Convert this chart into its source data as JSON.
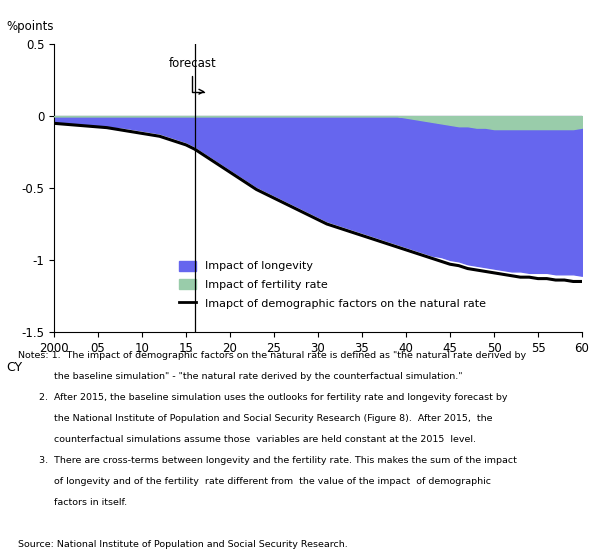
{
  "years": [
    2000,
    2001,
    2002,
    2003,
    2004,
    2005,
    2006,
    2007,
    2008,
    2009,
    2010,
    2011,
    2012,
    2013,
    2014,
    2015,
    2016,
    2017,
    2018,
    2019,
    2020,
    2021,
    2022,
    2023,
    2024,
    2025,
    2026,
    2027,
    2028,
    2029,
    2030,
    2031,
    2032,
    2033,
    2034,
    2035,
    2036,
    2037,
    2038,
    2039,
    2040,
    2041,
    2042,
    2043,
    2044,
    2045,
    2046,
    2047,
    2048,
    2049,
    2050,
    2051,
    2052,
    2053,
    2054,
    2055,
    2056,
    2057,
    2058,
    2059,
    2060
  ],
  "total_impact": [
    -0.05,
    -0.055,
    -0.06,
    -0.065,
    -0.07,
    -0.075,
    -0.08,
    -0.09,
    -0.1,
    -0.11,
    -0.12,
    -0.13,
    -0.14,
    -0.16,
    -0.18,
    -0.2,
    -0.23,
    -0.27,
    -0.31,
    -0.35,
    -0.39,
    -0.43,
    -0.47,
    -0.51,
    -0.54,
    -0.57,
    -0.6,
    -0.63,
    -0.66,
    -0.69,
    -0.72,
    -0.75,
    -0.77,
    -0.79,
    -0.81,
    -0.83,
    -0.85,
    -0.87,
    -0.89,
    -0.91,
    -0.93,
    -0.95,
    -0.97,
    -0.99,
    -1.01,
    -1.03,
    -1.04,
    -1.06,
    -1.07,
    -1.08,
    -1.09,
    -1.1,
    -1.11,
    -1.12,
    -1.12,
    -1.13,
    -1.13,
    -1.14,
    -1.14,
    -1.15,
    -1.15
  ],
  "longevity_bottom": [
    -0.04,
    -0.045,
    -0.05,
    -0.055,
    -0.06,
    -0.065,
    -0.07,
    -0.075,
    -0.08,
    -0.09,
    -0.1,
    -0.11,
    -0.12,
    -0.14,
    -0.16,
    -0.18,
    -0.21,
    -0.25,
    -0.29,
    -0.33,
    -0.37,
    -0.41,
    -0.45,
    -0.49,
    -0.52,
    -0.55,
    -0.58,
    -0.61,
    -0.64,
    -0.67,
    -0.7,
    -0.73,
    -0.75,
    -0.77,
    -0.79,
    -0.81,
    -0.83,
    -0.85,
    -0.87,
    -0.89,
    -0.91,
    -0.93,
    -0.95,
    -0.97,
    -0.98,
    -1.0,
    -1.01,
    -1.03,
    -1.04,
    -1.05,
    -1.06,
    -1.07,
    -1.08,
    -1.08,
    -1.09,
    -1.09,
    -1.09,
    -1.1,
    -1.1,
    -1.1,
    -1.11
  ],
  "fertility_top": [
    0.0,
    0.0,
    0.0,
    0.0,
    0.0,
    0.0,
    0.0,
    0.0,
    0.0,
    0.0,
    0.0,
    0.0,
    0.0,
    0.0,
    0.0,
    0.0,
    0.0,
    0.0,
    0.0,
    0.0,
    0.0,
    0.0,
    0.0,
    0.0,
    0.0,
    0.0,
    0.0,
    0.0,
    0.0,
    0.0,
    0.0,
    0.0,
    0.0,
    0.0,
    0.0,
    0.0,
    0.0,
    0.0,
    0.0,
    0.0,
    -0.01,
    -0.02,
    -0.03,
    -0.04,
    -0.05,
    -0.06,
    -0.07,
    -0.07,
    -0.08,
    -0.08,
    -0.09,
    -0.09,
    -0.09,
    -0.09,
    -0.09,
    -0.09,
    -0.09,
    -0.09,
    -0.09,
    -0.09,
    -0.08
  ],
  "forecast_year": 2016,
  "ylim": [
    -1.5,
    0.5
  ],
  "xlim": [
    2000,
    2060
  ],
  "yticks": [
    -1.5,
    -1.0,
    -0.5,
    0,
    0.5
  ],
  "ytick_labels": [
    "-1.5",
    "-1",
    "-0.5",
    "0",
    "0.5"
  ],
  "xticks": [
    2000,
    2005,
    2010,
    2015,
    2020,
    2025,
    2030,
    2035,
    2040,
    2045,
    2050,
    2055,
    2060
  ],
  "xtick_labels": [
    "2000",
    "05",
    "10",
    "15",
    "20",
    "25",
    "30",
    "35",
    "40",
    "45",
    "50",
    "55",
    "60"
  ],
  "ylabel_text": "%points",
  "xlabel": "CY",
  "blue_color": "#6666EE",
  "green_color": "#99CCAA",
  "line_color": "#000000",
  "legend_longevity": "Impact of longevity",
  "legend_fertility": "Impact of fertility rate",
  "legend_total": "Imapct of demographic factors on the natural rate",
  "forecast_label": "forecast",
  "note1a": "Notes: 1.  The impact of demographic factors on the natural rate is defined as \"the natural rate derived by",
  "note1b": "            the baseline simulation\" - \"the natural rate derived by the counterfactual simulation.\"",
  "note2a": "       2.  After 2015, the baseline simulation uses the outlooks for fertility rate and longevity forecast by",
  "note2b": "            the National Institute of Population and Social Security Research (Figure 8).  After 2015,  the",
  "note2c": "            counterfactual simulations assume those  variables are held constant at the 2015  level.",
  "note3a": "       3.  There are cross-terms between longevity and the fertility rate. This makes the sum of the impact",
  "note3b": "            of longevity and of the fertility  rate different from  the value of the impact  of demographic",
  "note3c": "            factors in itself.",
  "source": "Source: National Institute of Population and Social Security Research."
}
